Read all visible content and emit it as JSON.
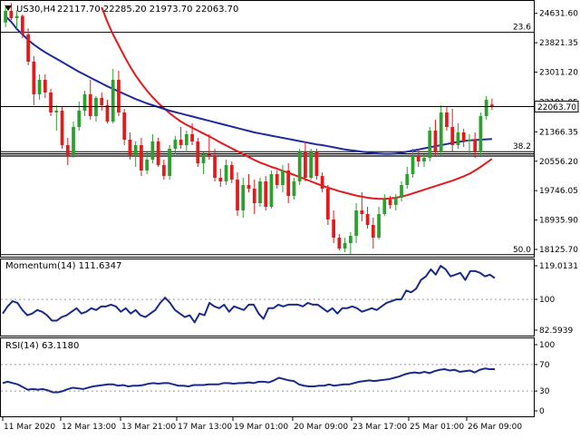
{
  "header": {
    "symbol_label": "US30,H4",
    "ohlc_label": "22117.70 22285.20 21973.70 22063.70"
  },
  "colors": {
    "bull": "#2ca02c",
    "bear": "#e31a1c",
    "sma_fast": "#1f2a9f",
    "sma_slow": "#e31a1c",
    "indicator_line": "#1a2a8a",
    "fib_line": "#000000",
    "grid": "#999999",
    "price_tag_bg": "#ffffff"
  },
  "icons": {
    "header_arrow": "triangle-down-icon"
  },
  "chart_data": [
    {
      "type": "candlestick",
      "ylim": [
        17950,
        24950
      ],
      "y_ticks": [
        "24631.60",
        "23821.35",
        "23011.20",
        "22191.05",
        "21366.35",
        "20556.20",
        "19746.05",
        "18935.90",
        "18125.70"
      ],
      "y_tick_values": [
        24631.6,
        23821.35,
        23011.2,
        22191.05,
        21366.35,
        20556.2,
        19746.05,
        18935.9,
        18125.7
      ],
      "last_price_label": "22063.70",
      "last_price": 22063.7,
      "fib_levels": [
        {
          "label": "23.6",
          "value": 24110
        },
        {
          "label": "38.2",
          "value": 20820
        },
        {
          "label": "50.0",
          "value": 17980
        }
      ],
      "support_lines": [
        20760,
        20700
      ],
      "candles": [
        {
          "o": 24380,
          "h": 24800,
          "l": 24250,
          "c": 24700
        },
        {
          "o": 24700,
          "h": 24920,
          "l": 24450,
          "c": 24500
        },
        {
          "o": 24500,
          "h": 24720,
          "l": 24200,
          "c": 24560
        },
        {
          "o": 24560,
          "h": 24600,
          "l": 23950,
          "c": 24050
        },
        {
          "o": 24050,
          "h": 24220,
          "l": 23200,
          "c": 23300
        },
        {
          "o": 23300,
          "h": 23450,
          "l": 22100,
          "c": 22400
        },
        {
          "o": 22400,
          "h": 22950,
          "l": 22250,
          "c": 22800
        },
        {
          "o": 22800,
          "h": 22950,
          "l": 22300,
          "c": 22450
        },
        {
          "o": 22450,
          "h": 22550,
          "l": 21800,
          "c": 21900
        },
        {
          "o": 21900,
          "h": 22100,
          "l": 21400,
          "c": 21950
        },
        {
          "o": 21950,
          "h": 22050,
          "l": 20900,
          "c": 21000
        },
        {
          "o": 21000,
          "h": 21200,
          "l": 20450,
          "c": 20700
        },
        {
          "o": 20700,
          "h": 21650,
          "l": 20650,
          "c": 21500
        },
        {
          "o": 21500,
          "h": 22200,
          "l": 21400,
          "c": 21950
        },
        {
          "o": 21950,
          "h": 22500,
          "l": 21800,
          "c": 22400
        },
        {
          "o": 22400,
          "h": 22800,
          "l": 21700,
          "c": 21800
        },
        {
          "o": 21800,
          "h": 22350,
          "l": 21650,
          "c": 22300
        },
        {
          "o": 22300,
          "h": 22450,
          "l": 21950,
          "c": 22100
        },
        {
          "o": 22100,
          "h": 22250,
          "l": 21600,
          "c": 21650
        },
        {
          "o": 21650,
          "h": 23100,
          "l": 21600,
          "c": 22800
        },
        {
          "o": 22800,
          "h": 23050,
          "l": 21800,
          "c": 21900
        },
        {
          "o": 21900,
          "h": 22000,
          "l": 21000,
          "c": 21150
        },
        {
          "o": 21150,
          "h": 21350,
          "l": 20600,
          "c": 20700
        },
        {
          "o": 20700,
          "h": 21100,
          "l": 20400,
          "c": 21000
        },
        {
          "o": 21000,
          "h": 21200,
          "l": 20150,
          "c": 20300
        },
        {
          "o": 20300,
          "h": 20800,
          "l": 20200,
          "c": 20600
        },
        {
          "o": 20600,
          "h": 21300,
          "l": 20500,
          "c": 21100
        },
        {
          "o": 21100,
          "h": 21200,
          "l": 20400,
          "c": 20450
        },
        {
          "o": 20450,
          "h": 20600,
          "l": 20050,
          "c": 20150
        },
        {
          "o": 20150,
          "h": 21000,
          "l": 20050,
          "c": 20900
        },
        {
          "o": 20900,
          "h": 21250,
          "l": 20750,
          "c": 21150
        },
        {
          "o": 21150,
          "h": 21500,
          "l": 20900,
          "c": 21000
        },
        {
          "o": 21000,
          "h": 21400,
          "l": 20800,
          "c": 21300
        },
        {
          "o": 21300,
          "h": 21600,
          "l": 21000,
          "c": 21100
        },
        {
          "o": 21100,
          "h": 21200,
          "l": 20400,
          "c": 20500
        },
        {
          "o": 20500,
          "h": 20800,
          "l": 20200,
          "c": 20750
        },
        {
          "o": 20750,
          "h": 21300,
          "l": 20600,
          "c": 20700
        },
        {
          "o": 20700,
          "h": 20900,
          "l": 20000,
          "c": 20100
        },
        {
          "o": 20100,
          "h": 20350,
          "l": 19850,
          "c": 20000
        },
        {
          "o": 20000,
          "h": 20600,
          "l": 19900,
          "c": 20450
        },
        {
          "o": 20450,
          "h": 20550,
          "l": 19950,
          "c": 20050
        },
        {
          "o": 20050,
          "h": 20250,
          "l": 19050,
          "c": 19200
        },
        {
          "o": 19200,
          "h": 20100,
          "l": 19000,
          "c": 19900
        },
        {
          "o": 19900,
          "h": 20200,
          "l": 19700,
          "c": 19800
        },
        {
          "o": 19800,
          "h": 20050,
          "l": 19100,
          "c": 19400
        },
        {
          "o": 19400,
          "h": 20100,
          "l": 19300,
          "c": 20000
        },
        {
          "o": 20000,
          "h": 20150,
          "l": 19200,
          "c": 19300
        },
        {
          "o": 19300,
          "h": 20300,
          "l": 19250,
          "c": 20200
        },
        {
          "o": 20200,
          "h": 20300,
          "l": 19800,
          "c": 19900
        },
        {
          "o": 19900,
          "h": 20450,
          "l": 19700,
          "c": 20300
        },
        {
          "o": 20300,
          "h": 20500,
          "l": 19400,
          "c": 19600
        },
        {
          "o": 19600,
          "h": 20100,
          "l": 19500,
          "c": 20000
        },
        {
          "o": 20000,
          "h": 20900,
          "l": 19900,
          "c": 20800
        },
        {
          "o": 20800,
          "h": 21100,
          "l": 20000,
          "c": 20100
        },
        {
          "o": 20100,
          "h": 20900,
          "l": 20050,
          "c": 20800
        },
        {
          "o": 20800,
          "h": 20900,
          "l": 20050,
          "c": 20150
        },
        {
          "o": 20150,
          "h": 20250,
          "l": 19700,
          "c": 19800
        },
        {
          "o": 19800,
          "h": 19900,
          "l": 18800,
          "c": 18950
        },
        {
          "o": 18950,
          "h": 19200,
          "l": 18300,
          "c": 18450
        },
        {
          "o": 18450,
          "h": 18550,
          "l": 18100,
          "c": 18150
        },
        {
          "o": 18150,
          "h": 18450,
          "l": 18050,
          "c": 18300
        },
        {
          "o": 18300,
          "h": 18600,
          "l": 18000,
          "c": 18500
        },
        {
          "o": 18500,
          "h": 19400,
          "l": 18300,
          "c": 19200
        },
        {
          "o": 19200,
          "h": 19700,
          "l": 18900,
          "c": 19100
        },
        {
          "o": 19100,
          "h": 19300,
          "l": 18700,
          "c": 18800
        },
        {
          "o": 18800,
          "h": 19000,
          "l": 18150,
          "c": 18450
        },
        {
          "o": 18450,
          "h": 19300,
          "l": 18400,
          "c": 19100
        },
        {
          "o": 19100,
          "h": 19650,
          "l": 19050,
          "c": 19500
        },
        {
          "o": 19500,
          "h": 19600,
          "l": 19250,
          "c": 19350
        },
        {
          "o": 19350,
          "h": 19650,
          "l": 19200,
          "c": 19550
        },
        {
          "o": 19550,
          "h": 20000,
          "l": 19450,
          "c": 19900
        },
        {
          "o": 19900,
          "h": 20400,
          "l": 19800,
          "c": 20200
        },
        {
          "o": 20200,
          "h": 20900,
          "l": 20100,
          "c": 20700
        },
        {
          "o": 20700,
          "h": 20900,
          "l": 20400,
          "c": 20550
        },
        {
          "o": 20550,
          "h": 20750,
          "l": 20400,
          "c": 20650
        },
        {
          "o": 20650,
          "h": 21500,
          "l": 20550,
          "c": 21400
        },
        {
          "o": 21400,
          "h": 21700,
          "l": 20700,
          "c": 20800
        },
        {
          "o": 20800,
          "h": 22100,
          "l": 20700,
          "c": 21900
        },
        {
          "o": 21900,
          "h": 22050,
          "l": 21400,
          "c": 21500
        },
        {
          "o": 21500,
          "h": 22000,
          "l": 20800,
          "c": 21000
        },
        {
          "o": 21000,
          "h": 21600,
          "l": 20900,
          "c": 21350
        },
        {
          "o": 21350,
          "h": 21450,
          "l": 20950,
          "c": 21100
        },
        {
          "o": 21100,
          "h": 21300,
          "l": 20700,
          "c": 21150
        },
        {
          "o": 21150,
          "h": 21350,
          "l": 20650,
          "c": 20800
        },
        {
          "o": 20800,
          "h": 21900,
          "l": 20700,
          "c": 21800
        },
        {
          "o": 21800,
          "h": 22350,
          "l": 21700,
          "c": 22250
        },
        {
          "o": 22117.7,
          "h": 22285.2,
          "l": 21973.7,
          "c": 22063.7
        }
      ],
      "sma_fast": [
        24550,
        24400,
        24200,
        24050,
        23900,
        23770,
        23660,
        23560,
        23470,
        23380,
        23290,
        23200,
        23110,
        23020,
        22940,
        22860,
        22780,
        22700,
        22620,
        22550,
        22480,
        22410,
        22340,
        22270,
        22210,
        22150,
        22100,
        22050,
        22000,
        21950,
        21910,
        21870,
        21830,
        21790,
        21750,
        21710,
        21670,
        21630,
        21590,
        21550,
        21510,
        21470,
        21430,
        21390,
        21350,
        21320,
        21290,
        21260,
        21230,
        21200,
        21170,
        21140,
        21110,
        21080,
        21050,
        21020,
        21000,
        20970,
        20940,
        20910,
        20880,
        20860,
        20840,
        20820,
        20800,
        20780,
        20770,
        20760,
        20760,
        20770,
        20790,
        20820,
        20850,
        20880,
        20910,
        20940,
        20970,
        21000,
        21030,
        21060,
        21090,
        21110,
        21130,
        21140,
        21150,
        21160,
        21170
      ],
      "sma_slow": [
        null,
        null,
        null,
        null,
        null,
        null,
        null,
        null,
        null,
        null,
        null,
        null,
        null,
        null,
        null,
        null,
        null,
        24800,
        24400,
        24050,
        23750,
        23450,
        23170,
        22920,
        22700,
        22500,
        22320,
        22160,
        22020,
        21880,
        21760,
        21650,
        21560,
        21480,
        21400,
        21320,
        21240,
        21160,
        21070,
        20990,
        20910,
        20830,
        20750,
        20670,
        20590,
        20520,
        20460,
        20400,
        20350,
        20290,
        20240,
        20180,
        20120,
        20060,
        20000,
        19940,
        19880,
        19830,
        19780,
        19730,
        19690,
        19650,
        19610,
        19580,
        19550,
        19530,
        19520,
        19520,
        19530,
        19550,
        19580,
        19620,
        19670,
        19720,
        19770,
        19820,
        19870,
        19920,
        19970,
        20020,
        20080,
        20140,
        20210,
        20300,
        20400,
        20510,
        20620
      ]
    },
    {
      "type": "line",
      "title": "Momentum(14) 111.6347",
      "ylim": [
        82.5939,
        119.0131
      ],
      "y_ticks": [
        "119.0131",
        "100",
        "82.5939"
      ],
      "y_tick_values": [
        119.0131,
        100,
        82.5939
      ],
      "reference_level": 100,
      "values": [
        92,
        96,
        99,
        98,
        94,
        91,
        92,
        94,
        93,
        91,
        88,
        88,
        90,
        91,
        93,
        95,
        92,
        93,
        95,
        94,
        96,
        96,
        97,
        96,
        93,
        95,
        92,
        94,
        91,
        90,
        92,
        94,
        98,
        101,
        98,
        94,
        92,
        90,
        91,
        87,
        92,
        91,
        98,
        96,
        95,
        97,
        93,
        96,
        95,
        94,
        97,
        97,
        92,
        89,
        95,
        95,
        97,
        96,
        97,
        97,
        97,
        96,
        98,
        97,
        97,
        95,
        93,
        95,
        92,
        95,
        95,
        96,
        95,
        93,
        94,
        95,
        94,
        96,
        98,
        99,
        100,
        100,
        105,
        104,
        106,
        111,
        113,
        117,
        114,
        119,
        117,
        113,
        114,
        115,
        111,
        116,
        116,
        115,
        113,
        114,
        112
      ]
    },
    {
      "type": "line",
      "title": "RSI(14) 63.1180",
      "ylim": [
        0,
        100
      ],
      "y_ticks": [
        "100",
        "70",
        "30",
        "0"
      ],
      "y_tick_values": [
        100,
        70,
        30,
        0
      ],
      "levels": [
        70,
        30
      ],
      "values": [
        42,
        44,
        42,
        40,
        36,
        32,
        33,
        32,
        33,
        31,
        28,
        28,
        30,
        33,
        35,
        34,
        33,
        35,
        37,
        38,
        39,
        40,
        40,
        38,
        39,
        37,
        38,
        38,
        39,
        41,
        42,
        41,
        42,
        42,
        40,
        38,
        38,
        37,
        39,
        39,
        39,
        40,
        40,
        40,
        42,
        42,
        41,
        42,
        42,
        43,
        42,
        44,
        44,
        43,
        46,
        50,
        48,
        46,
        45,
        40,
        38,
        37,
        37,
        38,
        38,
        40,
        38,
        39,
        40,
        40,
        42,
        44,
        45,
        46,
        45,
        46,
        47,
        48,
        50,
        52,
        55,
        57,
        58,
        57,
        59,
        57,
        60,
        62,
        63,
        61,
        62,
        59,
        60,
        61,
        58,
        62,
        64,
        63,
        63
      ]
    }
  ],
  "x_axis": {
    "labels": [
      "11 Mar 2020",
      "12 Mar 13:00",
      "13 Mar 21:00",
      "17 Mar 13:00",
      "19 Mar 01:00",
      "20 Mar 09:00",
      "23 Mar 17:00",
      "25 Mar 01:00",
      "26 Mar 09:00"
    ],
    "label_positions": [
      2,
      66,
      132,
      194,
      256,
      322,
      387,
      450,
      514
    ]
  }
}
